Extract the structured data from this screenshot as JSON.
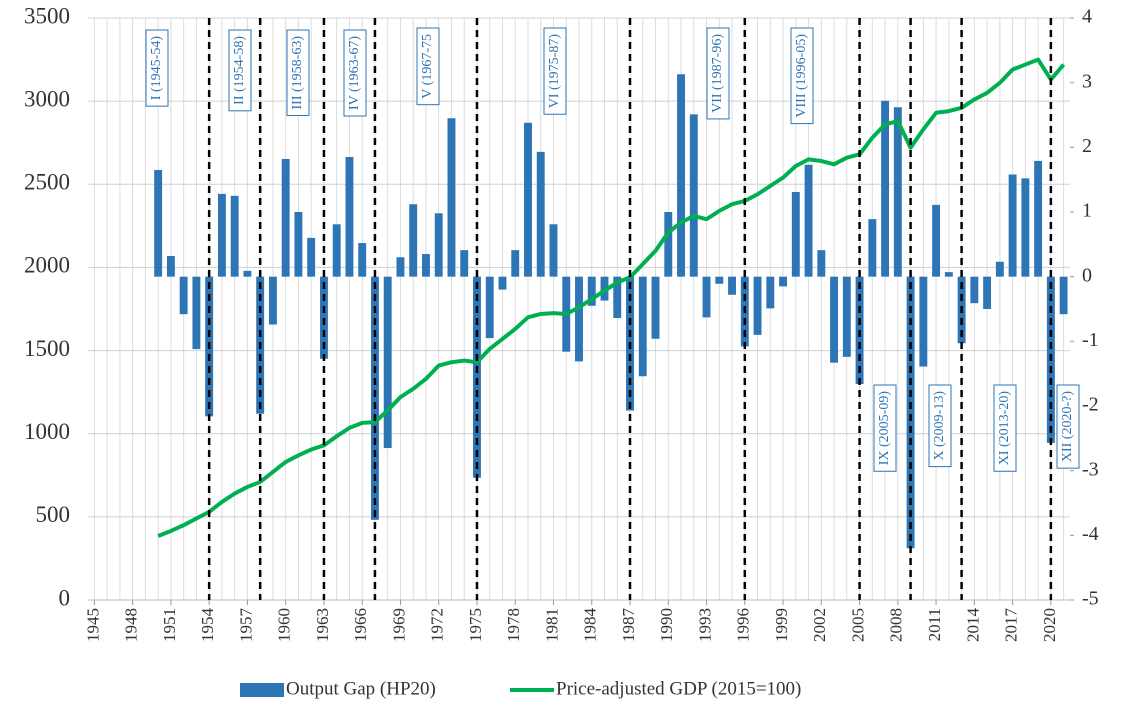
{
  "chart_data": {
    "type": "bar+line",
    "x": [
      1950,
      1951,
      1952,
      1953,
      1954,
      1955,
      1956,
      1957,
      1958,
      1959,
      1960,
      1961,
      1962,
      1963,
      1964,
      1965,
      1966,
      1967,
      1968,
      1969,
      1970,
      1971,
      1972,
      1973,
      1974,
      1975,
      1976,
      1977,
      1978,
      1979,
      1980,
      1981,
      1982,
      1983,
      1984,
      1985,
      1986,
      1987,
      1988,
      1989,
      1990,
      1991,
      1992,
      1993,
      1994,
      1995,
      1996,
      1997,
      1998,
      1999,
      2000,
      2001,
      2002,
      2003,
      2004,
      2005,
      2006,
      2007,
      2008,
      2009,
      2010,
      2011,
      2012,
      2013,
      2014,
      2015,
      2016,
      2017,
      2018,
      2019,
      2020,
      2021
    ],
    "series": [
      {
        "name": "Output Gap (HP20)",
        "type": "bar",
        "axis": "y2",
        "color": "#2e75b6",
        "values": [
          1.65,
          0.32,
          -0.58,
          -1.12,
          -2.16,
          1.28,
          1.25,
          0.09,
          -2.12,
          -0.74,
          1.82,
          1.0,
          0.6,
          -1.27,
          0.81,
          1.85,
          0.52,
          -3.76,
          -2.65,
          0.3,
          1.12,
          0.35,
          0.98,
          2.45,
          0.41,
          -3.11,
          -0.95,
          -0.2,
          0.41,
          2.38,
          1.93,
          0.81,
          -1.16,
          -1.31,
          -0.45,
          -0.37,
          -0.64,
          -2.07,
          -1.54,
          -0.96,
          1.0,
          3.13,
          2.51,
          -0.63,
          -0.11,
          -0.28,
          -1.08,
          -0.9,
          -0.49,
          -0.15,
          1.31,
          1.73,
          0.41,
          -1.33,
          -1.24,
          -1.66,
          0.89,
          2.72,
          2.62,
          -4.2,
          -1.39,
          1.11,
          0.07,
          -1.03,
          -0.41,
          -0.5,
          0.23,
          1.58,
          1.52,
          1.79,
          -2.57,
          -0.58
        ]
      },
      {
        "name": "Price-adjusted GDP (2015=100)",
        "type": "line",
        "color": "#00b050",
        "values": [
          385,
          415,
          450,
          490,
          530,
          590,
          640,
          680,
          710,
          770,
          830,
          870,
          905,
          930,
          985,
          1035,
          1065,
          1070,
          1140,
          1220,
          1270,
          1330,
          1410,
          1430,
          1440,
          1430,
          1510,
          1570,
          1630,
          1700,
          1720,
          1725,
          1720,
          1760,
          1810,
          1860,
          1910,
          1940,
          2020,
          2100,
          2210,
          2270,
          2310,
          2290,
          2340,
          2380,
          2400,
          2440,
          2490,
          2540,
          2610,
          2650,
          2640,
          2620,
          2660,
          2680,
          2780,
          2860,
          2880,
          2720,
          2830,
          2930,
          2940,
          2960,
          3010,
          3050,
          3110,
          3190,
          3220,
          3250,
          3130,
          3220
        ]
      }
    ],
    "xlim": [
      1944.5,
      2021.5
    ],
    "xticks": [
      1945,
      1948,
      1951,
      1954,
      1957,
      1960,
      1963,
      1966,
      1969,
      1972,
      1975,
      1978,
      1981,
      1984,
      1987,
      1990,
      1993,
      1996,
      1999,
      2002,
      2005,
      2008,
      2011,
      2014,
      2017,
      2020
    ],
    "ylim": [
      0,
      3500
    ],
    "yticks": [
      0,
      500,
      1000,
      1500,
      2000,
      2500,
      3000,
      3500
    ],
    "y2lim": [
      -5,
      4
    ],
    "y2ticks": [
      -5,
      -4,
      -3,
      -2,
      -1,
      0,
      1,
      2,
      3,
      4
    ],
    "grid": true,
    "legend": "bottom",
    "dividers": [
      1954,
      1958,
      1963,
      1967,
      1975,
      1987,
      1996,
      2005,
      2009,
      2013,
      2020
    ],
    "annotations": [
      "I (1945-54)",
      "II (1954-58)",
      "III (1958-63)",
      "IV (1963-67)",
      "V (1967-75",
      "VI (1975-87)",
      "VII (1987-96)",
      "VIII (1996-05)",
      "IX (2005-09)",
      "X (2009-13)",
      "XI (2013-20)",
      "XII (2020-?)"
    ]
  }
}
